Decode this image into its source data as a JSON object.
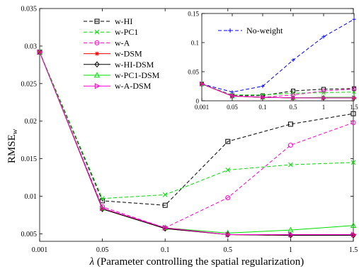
{
  "chart_data": [
    {
      "type": "line",
      "x": [
        "0.001",
        "0.05",
        "0.1",
        "0.5",
        "1",
        "1.5"
      ],
      "xlabel_symbol": "λ",
      "xlabel": " (Parameter controlling the spatial regularization)",
      "ylabel": "RMSE",
      "ylabel_sub": "w",
      "ylim": [
        0.004,
        0.035
      ],
      "yticks": [
        "0.005",
        "0.01",
        "0.015",
        "0.02",
        "0.025",
        "0.03",
        "0.035"
      ],
      "legend_position": "top-left",
      "series": [
        {
          "name": "w-HI",
          "color": "#000000",
          "dash": "5,3",
          "marker": "square",
          "values": [
            0.0292,
            0.0094,
            0.0088,
            0.0173,
            0.0196,
            0.021
          ]
        },
        {
          "name": "w-PC1",
          "color": "#00dd00",
          "dash": "5,3",
          "marker": "x",
          "values": [
            0.0292,
            0.0097,
            0.0102,
            0.0135,
            0.0142,
            0.0145
          ]
        },
        {
          "name": "w-A",
          "color": "#ff00cc",
          "dash": "5,3",
          "marker": "circle",
          "values": [
            0.0292,
            0.0086,
            0.0058,
            0.0098,
            0.0168,
            0.0198
          ]
        },
        {
          "name": "w-DSM",
          "color": "#ff0000",
          "dash": "",
          "marker": "star",
          "values": [
            0.0292,
            0.0083,
            0.0057,
            0.0049,
            0.0048,
            0.0048
          ]
        },
        {
          "name": "w-HI-DSM",
          "color": "#000000",
          "dash": "",
          "marker": "diamond",
          "values": [
            0.0292,
            0.0083,
            0.0057,
            0.0049,
            0.0048,
            0.0048
          ]
        },
        {
          "name": "w-PC1-DSM",
          "color": "#00dd00",
          "dash": "",
          "marker": "triangle-up",
          "values": [
            0.0292,
            0.0084,
            0.0058,
            0.0051,
            0.0055,
            0.0061
          ]
        },
        {
          "name": "w-A-DSM",
          "color": "#ff00cc",
          "dash": "",
          "marker": "triangle-right",
          "values": [
            0.0292,
            0.0084,
            0.0058,
            0.0049,
            0.0049,
            0.0049
          ]
        }
      ]
    },
    {
      "type": "line",
      "x": [
        "0.001",
        "0.05",
        "0.1",
        "0.5",
        "1",
        "1.5"
      ],
      "ylim": [
        0,
        0.15
      ],
      "yticks": [
        "0",
        "0.05",
        "0.1",
        "0.15"
      ],
      "legend_position": "top-left",
      "series": [
        {
          "name": "No-weight",
          "color": "#0000ff",
          "dash": "5,3",
          "marker": "plus",
          "legend": true,
          "values": [
            0.029,
            0.015,
            0.025,
            0.07,
            0.11,
            0.14
          ]
        },
        {
          "color": "#000000",
          "dash": "5,3",
          "marker": "square",
          "values": [
            0.029,
            0.009,
            0.009,
            0.017,
            0.02,
            0.021
          ]
        },
        {
          "color": "#00dd00",
          "dash": "5,3",
          "marker": "x",
          "values": [
            0.029,
            0.01,
            0.01,
            0.013,
            0.014,
            0.015
          ]
        },
        {
          "color": "#ff00cc",
          "dash": "5,3",
          "marker": "circle",
          "values": [
            0.029,
            0.009,
            0.006,
            0.01,
            0.017,
            0.02
          ]
        },
        {
          "color": "#ff0000",
          "dash": "",
          "marker": "star",
          "values": [
            0.029,
            0.008,
            0.006,
            0.005,
            0.005,
            0.005
          ]
        },
        {
          "color": "#000000",
          "dash": "",
          "marker": "diamond",
          "values": [
            0.029,
            0.008,
            0.006,
            0.005,
            0.005,
            0.005
          ]
        },
        {
          "color": "#00dd00",
          "dash": "",
          "marker": "triangle-up",
          "values": [
            0.029,
            0.008,
            0.006,
            0.005,
            0.006,
            0.006
          ]
        },
        {
          "color": "#ff00cc",
          "dash": "",
          "marker": "triangle-right",
          "values": [
            0.029,
            0.008,
            0.006,
            0.005,
            0.005,
            0.005
          ]
        }
      ]
    }
  ]
}
